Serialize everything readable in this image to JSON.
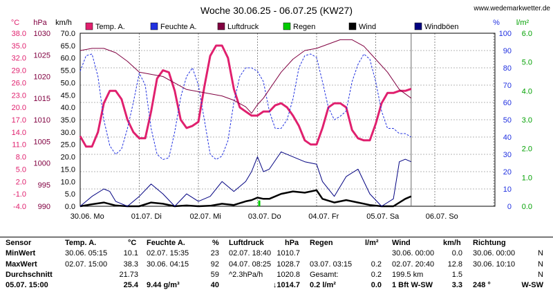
{
  "chart_data": {
    "type": "line",
    "title": "Woche 30.06.25 - 06.07.25 (KW27)",
    "site": "www.wedemarkwetter.de",
    "unit_labels": {
      "temp": "°C",
      "pressure": "hPa",
      "wind": "km/h",
      "humidity": "%",
      "rain": "l/m²"
    },
    "x_day_labels": [
      "30.06. Mo",
      "01.07. Di",
      "02.07. Mi",
      "03.07. Do",
      "04.07. Fr",
      "05.07. Sa",
      "06.07. So"
    ],
    "axes": {
      "temp": {
        "range": [
          -4,
          38
        ],
        "ticks": [
          "38.0",
          "35.0",
          "32.0",
          "29.0",
          "26.0",
          "23.0",
          "20.0",
          "17.0",
          "14.0",
          "11.0",
          "8.0",
          "5.0",
          "2.0",
          "-1.0",
          "-4.0"
        ]
      },
      "pressure": {
        "range": [
          990,
          1030
        ],
        "ticks": [
          "1030",
          "1025",
          "1020",
          "1015",
          "1010",
          "1005",
          "1000",
          "995",
          "990"
        ]
      },
      "wind": {
        "range": [
          0,
          70
        ],
        "ticks": [
          "70.0",
          "65.0",
          "60.0",
          "55.0",
          "50.0",
          "45.0",
          "40.0",
          "35.0",
          "30.0",
          "25.0",
          "20.0",
          "15.0",
          "10.0",
          "5.0",
          "0.0"
        ]
      },
      "humidity": {
        "range": [
          0,
          100
        ],
        "ticks": [
          "100",
          "90",
          "80",
          "70",
          "60",
          "50",
          "40",
          "30",
          "20",
          "10",
          "0"
        ]
      },
      "rain": {
        "range": [
          0,
          6
        ],
        "ticks": [
          "6.0",
          "5.0",
          "4.0",
          "3.0",
          "2.0",
          "1.0",
          "0.0"
        ]
      }
    },
    "legend": [
      "Temp. A.",
      "Feuchte A.",
      "Luftdruck",
      "Regen",
      "Wind",
      "Windböen"
    ],
    "colors": {
      "temp": "#e0206e",
      "humidity": "#2030e0",
      "pressure": "#800040",
      "rain": "#00cc00",
      "wind": "#000000",
      "gust": "#000080"
    },
    "series": [
      {
        "name": "Temp. A.",
        "axis": "temp",
        "x": [
          0,
          0.1,
          0.2,
          0.3,
          0.4,
          0.5,
          0.6,
          0.7,
          0.8,
          0.9,
          1.0,
          1.1,
          1.2,
          1.3,
          1.4,
          1.5,
          1.6,
          1.7,
          1.8,
          1.9,
          2.0,
          2.1,
          2.2,
          2.3,
          2.4,
          2.5,
          2.6,
          2.7,
          2.8,
          2.9,
          3.0,
          3.1,
          3.2,
          3.3,
          3.4,
          3.5,
          3.6,
          3.7,
          3.8,
          3.9,
          4.0,
          4.1,
          4.2,
          4.3,
          4.4,
          4.5,
          4.6,
          4.7,
          4.8,
          4.9,
          5.0,
          5.1,
          5.2,
          5.3,
          5.4,
          5.5,
          5.6
        ],
        "y": [
          13,
          10.5,
          10.5,
          14,
          21,
          24,
          24,
          22,
          17,
          14,
          12.5,
          12.5,
          19,
          27,
          29,
          28.5,
          24,
          17,
          15,
          15.5,
          16.5,
          25,
          32.5,
          35,
          35,
          32,
          24.5,
          20,
          19,
          18,
          18,
          19,
          19,
          20.5,
          21,
          20,
          18,
          15.5,
          12,
          11,
          11,
          15,
          20,
          21,
          21,
          20,
          14.5,
          12.5,
          12,
          12,
          16,
          21,
          23.5,
          23.5,
          24,
          24,
          24.5
        ]
      },
      {
        "name": "Feuchte A.",
        "axis": "humidity",
        "x": [
          0,
          0.1,
          0.2,
          0.3,
          0.4,
          0.5,
          0.6,
          0.7,
          0.8,
          0.9,
          1.0,
          1.1,
          1.2,
          1.3,
          1.4,
          1.5,
          1.6,
          1.7,
          1.8,
          1.9,
          2.0,
          2.1,
          2.2,
          2.3,
          2.4,
          2.5,
          2.6,
          2.7,
          2.8,
          2.9,
          3.0,
          3.1,
          3.2,
          3.3,
          3.4,
          3.5,
          3.6,
          3.7,
          3.8,
          3.9,
          4.0,
          4.1,
          4.2,
          4.3,
          4.4,
          4.5,
          4.6,
          4.7,
          4.8,
          4.9,
          5.0,
          5.1,
          5.2,
          5.3,
          5.4,
          5.5,
          5.6
        ],
        "y": [
          78,
          87,
          88,
          75,
          50,
          35,
          30,
          33,
          45,
          60,
          77,
          70,
          45,
          30,
          27,
          28,
          43,
          63,
          75,
          80,
          70,
          50,
          30,
          27,
          29,
          38,
          60,
          75,
          80,
          80,
          78,
          72,
          55,
          45,
          45,
          50,
          62,
          80,
          87,
          88,
          86,
          72,
          57,
          50,
          52,
          55,
          72,
          82,
          88,
          85,
          72,
          55,
          45,
          45,
          42,
          42,
          40
        ]
      },
      {
        "name": "Luftdruck",
        "axis": "pressure",
        "x": [
          0,
          0.2,
          0.4,
          0.6,
          0.8,
          1.0,
          1.2,
          1.4,
          1.6,
          1.8,
          2.0,
          2.2,
          2.4,
          2.6,
          2.8,
          2.9,
          3.0,
          3.1,
          3.2,
          3.4,
          3.6,
          3.8,
          4.0,
          4.2,
          4.4,
          4.6,
          4.8,
          5.0,
          5.2,
          5.4,
          5.6
        ],
        "y": [
          1026,
          1026.5,
          1026.5,
          1025.5,
          1023.5,
          1021,
          1020.5,
          1020,
          1018.5,
          1017,
          1016.5,
          1016,
          1015.5,
          1014.5,
          1013,
          1011.5,
          1013.5,
          1015,
          1017,
          1021,
          1024,
          1026,
          1026.5,
          1027.5,
          1028.5,
          1028.5,
          1027,
          1024,
          1021,
          1017,
          1015
        ]
      },
      {
        "name": "Wind",
        "axis": "wind",
        "x": [
          0,
          0.2,
          0.4,
          0.6,
          0.8,
          1.0,
          1.2,
          1.4,
          1.6,
          1.8,
          2.0,
          2.2,
          2.4,
          2.6,
          2.8,
          2.9,
          3.0,
          3.1,
          3.2,
          3.4,
          3.6,
          3.8,
          4.0,
          4.1,
          4.3,
          4.5,
          4.7,
          4.9,
          5.1,
          5.3,
          5.5,
          5.6
        ],
        "y": [
          0,
          0.8,
          1.5,
          0.3,
          0,
          0,
          1.5,
          1,
          0,
          0.3,
          0,
          0.2,
          1,
          0.5,
          2,
          2.5,
          3.5,
          3,
          3,
          5,
          6,
          5.5,
          6.5,
          3,
          1.5,
          2.5,
          1.5,
          0.5,
          0,
          0,
          3,
          4
        ]
      },
      {
        "name": "Windböen",
        "axis": "wind",
        "x": [
          0,
          0.2,
          0.4,
          0.5,
          0.6,
          0.8,
          1.0,
          1.2,
          1.4,
          1.6,
          1.8,
          2.0,
          2.2,
          2.4,
          2.6,
          2.8,
          2.9,
          3.0,
          3.1,
          3.2,
          3.4,
          3.6,
          3.8,
          4.0,
          4.1,
          4.3,
          4.5,
          4.7,
          4.9,
          5.1,
          5.3,
          5.4,
          5.5,
          5.6
        ],
        "y": [
          0,
          4,
          7,
          6,
          2,
          0,
          4,
          9,
          5,
          0,
          5,
          2,
          4,
          10,
          6,
          10,
          14,
          20,
          14,
          15,
          22,
          20,
          18,
          17,
          10,
          4,
          12,
          15,
          5,
          0,
          3,
          18,
          19,
          18
        ]
      },
      {
        "name": "Regen",
        "axis": "rain",
        "x": [
          3.03
        ],
        "y": [
          0.2
        ]
      }
    ]
  },
  "table": {
    "headers": {
      "sensor": "Sensor",
      "temp": "Temp. A.",
      "temp_unit": "°C",
      "hum": "Feuchte A.",
      "hum_unit": "%",
      "press": "Luftdruck",
      "press_unit": "hPa",
      "rain": "Regen",
      "rain_unit": "l/m²",
      "wind": "Wind",
      "wind_unit": "km/h",
      "dir": "Richtung"
    },
    "rows": [
      {
        "label": "MinWert",
        "t_time": "30.06. 05:15",
        "t_val": "10.1",
        "h_time": "02.07. 15:35",
        "h_val": "23",
        "p_time": "02.07. 18:40",
        "p_val": "1010.7",
        "r_time": "",
        "r_val": "",
        "w_time": "30.06. 00:00",
        "w_val": "0.0",
        "d_time": "30.06. 00:00",
        "d_val": "N"
      },
      {
        "label": "MaxWert",
        "t_time": "02.07. 15:00",
        "t_val": "38.3",
        "h_time": "30.06. 04:15",
        "h_val": "92",
        "p_time": "04.07. 08:25",
        "p_val": "1028.7",
        "r_time": "03.07. 03:15",
        "r_val": "0.2",
        "w_time": "02.07. 20:40",
        "w_val": "12.8",
        "d_time": "30.06. 10:10",
        "d_val": "N"
      },
      {
        "label": "Durchschnitt",
        "t_time": "",
        "t_val": "21.73",
        "h_time": "",
        "h_val": "59",
        "p_time": "^2.3hPa/h",
        "p_val": "1020.8",
        "r_time": "Gesamt:",
        "r_val": "0.2",
        "w_time": "199.5 km",
        "w_val": "1.5",
        "d_time": "",
        "d_val": "N"
      },
      {
        "label": "05.07. 15:00",
        "t_time": "",
        "t_val": "25.4",
        "h_time": "9.44 g/m³",
        "h_val": "40",
        "p_time": "",
        "p_val": "↓1014.7",
        "r_time": "0.2 l/m²",
        "r_val": "0.0",
        "w_time": "1 Bft W-SW",
        "w_val": "3.3",
        "d_time": "248 °",
        "d_val": "W-SW"
      }
    ]
  }
}
